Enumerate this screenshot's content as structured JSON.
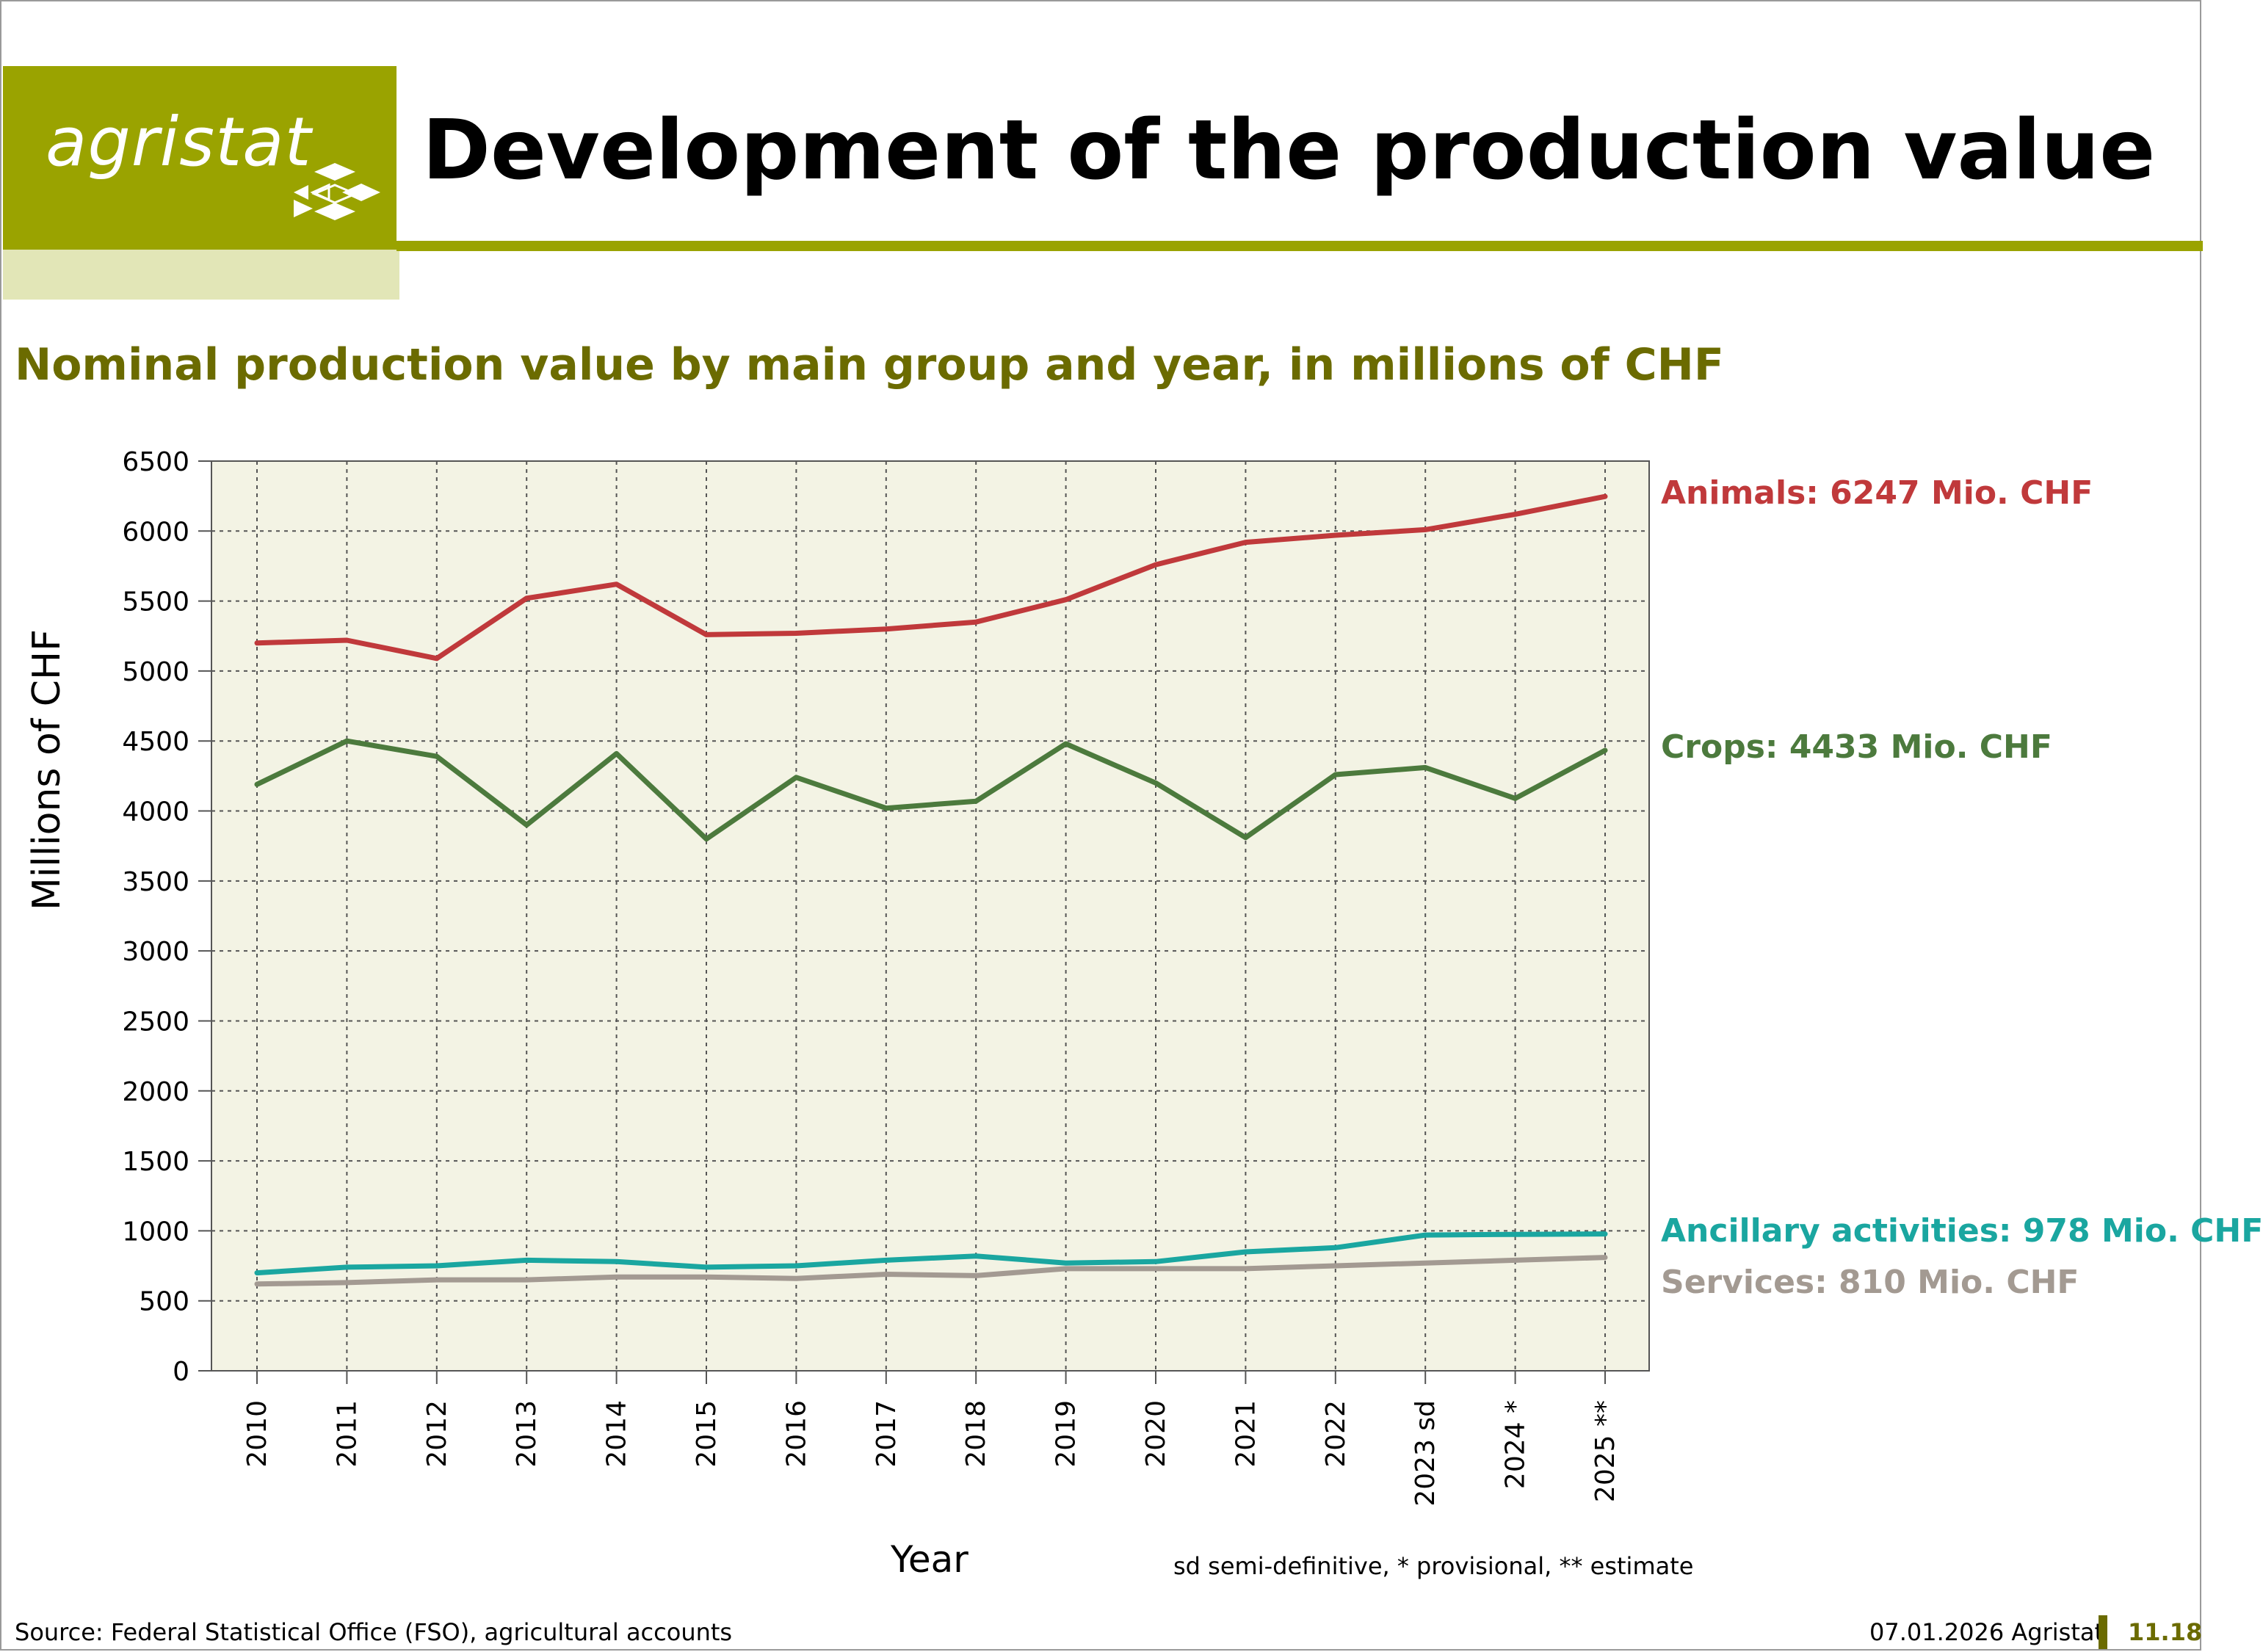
{
  "header": {
    "logo_text": "agristat",
    "title": "Development of the production value",
    "brand_color": "#9aa300"
  },
  "subtitle": "Nominal production value by main group and year, in millions of CHF",
  "chart_data": {
    "type": "line",
    "ylabel": "Millions of CHF",
    "xlabel": "Year",
    "ylim": [
      0,
      6500
    ],
    "yticks": [
      0,
      500,
      1000,
      1500,
      2000,
      2500,
      3000,
      3500,
      4000,
      4500,
      5000,
      5500,
      6000,
      6500
    ],
    "categories": [
      "2010",
      "2011",
      "2012",
      "2013",
      "2014",
      "2015",
      "2016",
      "2017",
      "2018",
      "2019",
      "2020",
      "2021",
      "2022",
      "2023 sd",
      "2024 *",
      "2025 **"
    ],
    "grid": true,
    "plot_background": "#f3f3e4",
    "series": [
      {
        "name": "Animals",
        "color": "#c0393b",
        "label": "Animals: 6247 Mio. CHF",
        "values": [
          5200,
          5220,
          5090,
          5520,
          5620,
          5260,
          5270,
          5300,
          5350,
          5510,
          5760,
          5920,
          5970,
          6010,
          6120,
          6247
        ]
      },
      {
        "name": "Crops",
        "color": "#4c7a3d",
        "label": "Crops: 4433 Mio. CHF",
        "values": [
          4190,
          4500,
          4390,
          3900,
          4410,
          3800,
          4240,
          4020,
          4070,
          4480,
          4200,
          3810,
          4260,
          4310,
          4090,
          4433
        ]
      },
      {
        "name": "Ancillary activities",
        "color": "#1aa6a0",
        "label": "Ancillary activities: 978 Mio. CHF",
        "values": [
          700,
          740,
          750,
          790,
          780,
          740,
          750,
          790,
          820,
          770,
          780,
          850,
          880,
          970,
          975,
          978
        ]
      },
      {
        "name": "Services",
        "color": "#a39a92",
        "label": "Services: 810 Mio. CHF",
        "values": [
          620,
          630,
          650,
          650,
          670,
          670,
          660,
          690,
          680,
          730,
          730,
          730,
          750,
          770,
          790,
          810
        ]
      }
    ]
  },
  "footnote": "sd semi-definitive, * provisional, ** estimate",
  "footer": {
    "source": "Source: Federal Statistical Office (FSO), agricultural accounts",
    "date": "07.01.2026 Agristat",
    "page": "11.18"
  }
}
